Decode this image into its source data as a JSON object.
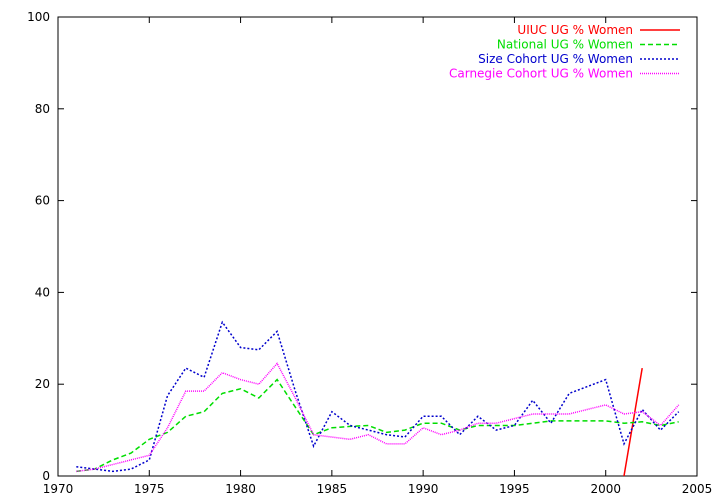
{
  "chart_data": {
    "type": "line",
    "title": "",
    "xlabel": "",
    "ylabel": "",
    "xlim": [
      1970,
      2005
    ],
    "ylim": [
      0,
      100
    ],
    "xticks": [
      1970,
      1975,
      1980,
      1985,
      1990,
      1995,
      2000,
      2005
    ],
    "yticks": [
      0,
      20,
      40,
      60,
      80,
      100
    ],
    "grid": false,
    "legend_position": "top-right",
    "series": [
      {
        "name": "UIUC UG % Women",
        "color": "#ff0000",
        "dash": "solid",
        "x": [
          2001,
          2002
        ],
        "y": [
          0,
          23.5
        ]
      },
      {
        "name": "National UG % Women",
        "color": "#00dd00",
        "dash": "dashed",
        "x": [
          1971,
          1972,
          1973,
          1974,
          1975,
          1976,
          1977,
          1978,
          1979,
          1980,
          1981,
          1982,
          1983,
          1984,
          1985,
          1986,
          1987,
          1988,
          1989,
          1990,
          1991,
          1992,
          1993,
          1994,
          1995,
          1996,
          1997,
          1998,
          1999,
          2000,
          2001,
          2002,
          2003,
          2004
        ],
        "y": [
          1.0,
          1.5,
          3.5,
          5.0,
          8.0,
          9.5,
          13.0,
          14.0,
          18.0,
          19.0,
          17.0,
          21.0,
          15.0,
          9.0,
          10.5,
          10.8,
          11.0,
          9.5,
          10.0,
          11.5,
          11.5,
          10.0,
          11.0,
          11.0,
          11.0,
          11.5,
          12.0,
          12.0,
          12.0,
          12.0,
          11.5,
          11.8,
          11.0,
          11.8
        ]
      },
      {
        "name": "Size Cohort UG % Women",
        "color": "#0000cc",
        "dash": "dotted-coarse",
        "x": [
          1971,
          1972,
          1973,
          1974,
          1975,
          1976,
          1977,
          1978,
          1979,
          1980,
          1981,
          1982,
          1983,
          1984,
          1985,
          1986,
          1987,
          1988,
          1989,
          1990,
          1991,
          1992,
          1993,
          1994,
          1995,
          1996,
          1997,
          1998,
          1999,
          2000,
          2001,
          2002,
          2003,
          2004
        ],
        "y": [
          2.0,
          1.5,
          1.0,
          1.5,
          3.5,
          17.5,
          23.5,
          21.5,
          33.5,
          28.0,
          27.5,
          31.5,
          18.5,
          6.5,
          14.0,
          11.0,
          10.0,
          9.0,
          8.5,
          13.0,
          13.0,
          9.0,
          13.0,
          10.0,
          11.0,
          16.5,
          11.5,
          18.0,
          19.5,
          21.0,
          7.0,
          14.5,
          10.0,
          14.0
        ]
      },
      {
        "name": "Carnegie Cohort UG % Women",
        "color": "#ff00ff",
        "dash": "dotted-fine",
        "x": [
          1971,
          1972,
          1973,
          1974,
          1975,
          1976,
          1977,
          1978,
          1979,
          1980,
          1981,
          1982,
          1983,
          1984,
          1985,
          1986,
          1987,
          1988,
          1989,
          1990,
          1991,
          1992,
          1993,
          1994,
          1995,
          1996,
          1997,
          1998,
          1999,
          2000,
          2001,
          2002,
          2003,
          2004
        ],
        "y": [
          1.0,
          1.5,
          2.5,
          3.5,
          4.5,
          10.5,
          18.5,
          18.5,
          22.5,
          21.0,
          20.0,
          24.5,
          17.0,
          9.0,
          8.5,
          8.0,
          9.0,
          7.0,
          7.0,
          10.5,
          9.0,
          10.0,
          11.5,
          11.5,
          12.5,
          13.5,
          13.5,
          13.5,
          14.5,
          15.5,
          13.5,
          14.0,
          11.0,
          15.5
        ]
      }
    ]
  }
}
